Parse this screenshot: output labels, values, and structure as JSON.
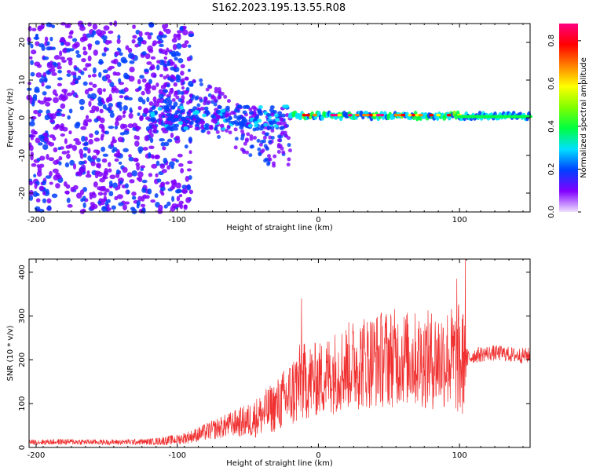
{
  "figure": {
    "title": "S162.2023.195.13.55.R08"
  },
  "chart_data": [
    {
      "type": "heatmap",
      "title": "S162.2023.195.13.55.R08",
      "xlabel": "Height of straight line (km)",
      "ylabel": "Frequency (Hz)",
      "xlim": [
        -205,
        150
      ],
      "ylim": [
        -25,
        25
      ],
      "x_ticks": [
        -200,
        -100,
        0,
        100
      ],
      "y_ticks": [
        -20,
        -10,
        0,
        10,
        20
      ],
      "grid": false,
      "colorbar": {
        "label": "Normalized spectral amplitude",
        "range": [
          0.0,
          0.88
        ],
        "ticks": [
          0.0,
          0.2,
          0.4,
          0.6,
          0.8
        ],
        "colormap": [
          "#f0e0ff",
          "#8000ff",
          "#0040ff",
          "#00e0ff",
          "#00ff40",
          "#80ff00",
          "#ffff00",
          "#ff8000",
          "#ff0000",
          "#ff0080"
        ]
      },
      "features": [
        {
          "x_range": [
            -205,
            -120
          ],
          "freq": 0,
          "amp": 0.25,
          "description_free": true
        },
        {
          "x_range": [
            -20,
            150
          ],
          "freq": 0.5,
          "amp": 0.8
        }
      ]
    },
    {
      "type": "line",
      "title": "",
      "xlabel": "Height of straight line (km)",
      "ylabel": "SNR (10 * v/v)",
      "xlim": [
        -205,
        150
      ],
      "ylim": [
        0,
        430
      ],
      "x_ticks": [
        -200,
        -100,
        0,
        100
      ],
      "y_ticks": [
        0,
        100,
        200,
        300,
        400
      ],
      "color": "#f03030",
      "envelope": {
        "x": [
          -205,
          -180,
          -150,
          -120,
          -110,
          -100,
          -90,
          -80,
          -70,
          -60,
          -50,
          -40,
          -30,
          -20,
          -15,
          -10,
          0,
          10,
          20,
          30,
          40,
          50,
          60,
          70,
          80,
          90,
          98,
          102,
          105,
          110,
          120,
          130,
          140,
          150
        ],
        "mean": [
          12,
          13,
          12,
          13,
          15,
          18,
          25,
          35,
          45,
          55,
          60,
          75,
          95,
          120,
          140,
          150,
          155,
          170,
          185,
          195,
          200,
          205,
          205,
          200,
          200,
          205,
          200,
          190,
          200,
          210,
          215,
          215,
          210,
          210
        ],
        "spread": [
          6,
          7,
          6,
          7,
          10,
          12,
          15,
          20,
          25,
          30,
          40,
          50,
          60,
          80,
          95,
          90,
          85,
          95,
          100,
          110,
          110,
          115,
          110,
          110,
          115,
          120,
          125,
          150,
          25,
          18,
          18,
          18,
          18,
          18
        ]
      },
      "peaks": [
        {
          "x": -12,
          "y": 340
        },
        {
          "x": 98,
          "y": 385
        },
        {
          "x": 104,
          "y": 430
        }
      ]
    }
  ]
}
